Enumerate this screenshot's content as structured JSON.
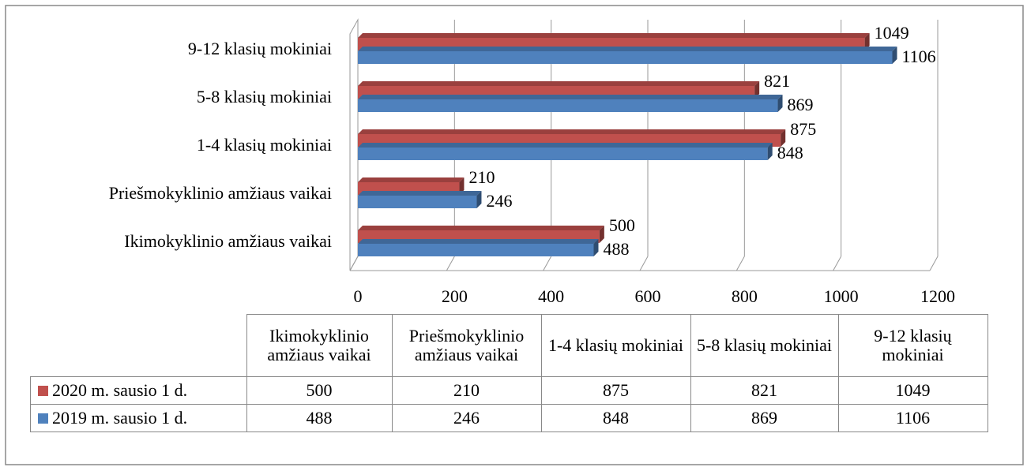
{
  "chart_data": {
    "type": "bar3d_horizontal",
    "categories": [
      "Ikimokyklinio amžiaus vaikai",
      "Priešmokyklinio amžiaus vaikai",
      "1-4 klasių mokiniai",
      "5-8 klasių mokiniai",
      "9-12 klasių mokiniai"
    ],
    "series": [
      {
        "name": "2020 m. sausio 1 d.",
        "color": "#c0504d",
        "values": [
          500,
          210,
          875,
          821,
          1049
        ]
      },
      {
        "name": "2019 m. sausio 1 d.",
        "color": "#4f81bd",
        "values": [
          488,
          246,
          848,
          869,
          1106
        ]
      }
    ],
    "xlim": [
      0,
      1200
    ],
    "xticks": [
      0,
      200,
      400,
      600,
      800,
      1000,
      1200
    ],
    "grid": true,
    "data_table": true
  }
}
